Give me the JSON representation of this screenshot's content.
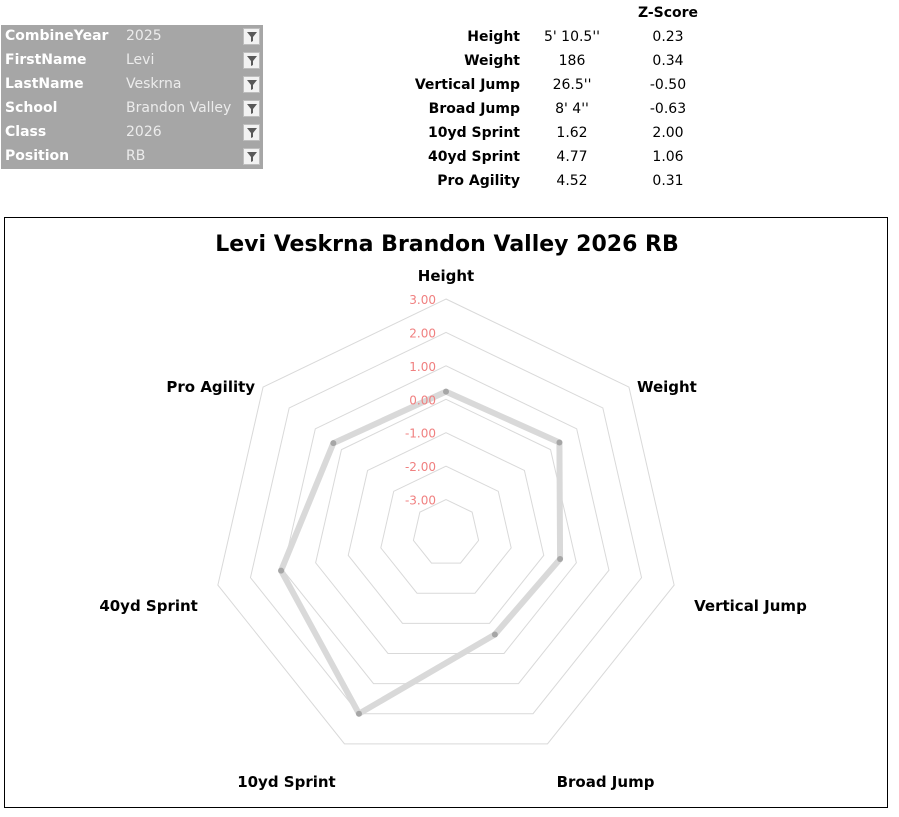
{
  "filters": [
    {
      "label": "CombineYear",
      "value": "2025"
    },
    {
      "label": "FirstName",
      "value": "Levi"
    },
    {
      "label": "LastName",
      "value": "Veskrna"
    },
    {
      "label": "School",
      "value": "Brandon Valley"
    },
    {
      "label": "Class",
      "value": "2026"
    },
    {
      "label": "Position",
      "value": "RB"
    }
  ],
  "stats": {
    "zscore_header": "Z-Score",
    "rows": [
      {
        "label": "Height",
        "value": "5' 10.5''",
        "z": "0.23"
      },
      {
        "label": "Weight",
        "value": "186",
        "z": "0.34"
      },
      {
        "label": "Vertical Jump",
        "value": "26.5''",
        "z": "-0.50"
      },
      {
        "label": "Broad Jump",
        "value": "8' 4''",
        "z": "-0.63"
      },
      {
        "label": "10yd Sprint",
        "value": "1.62",
        "z": "2.00"
      },
      {
        "label": "40yd Sprint",
        "value": "4.77",
        "z": "1.06"
      },
      {
        "label": "Pro Agility",
        "value": "4.52",
        "z": "0.31"
      }
    ]
  },
  "chart_data": {
    "type": "radar",
    "title": "Levi Veskrna Brandon Valley 2026 RB",
    "categories": [
      "Height",
      "Weight",
      "Vertical Jump",
      "Broad Jump",
      "10yd Sprint",
      "40yd Sprint",
      "Pro Agility"
    ],
    "series": [
      {
        "values": [
          0.23,
          0.34,
          -0.5,
          -0.63,
          2.0,
          1.06,
          0.31
        ]
      }
    ],
    "rlim": [
      -4,
      3
    ],
    "ticks": [
      "-3.00",
      "-2.00",
      "-1.00",
      "0.00",
      "1.00",
      "2.00",
      "3.00"
    ],
    "tick_values": [
      -3,
      -2,
      -1,
      0,
      1,
      2,
      3
    ],
    "grid": true,
    "legend": "none",
    "colors": {
      "series": "#d9d9d9",
      "grid": "#d9d9d9",
      "tick_label": "#f08080",
      "point": "#a6a6a6"
    }
  }
}
